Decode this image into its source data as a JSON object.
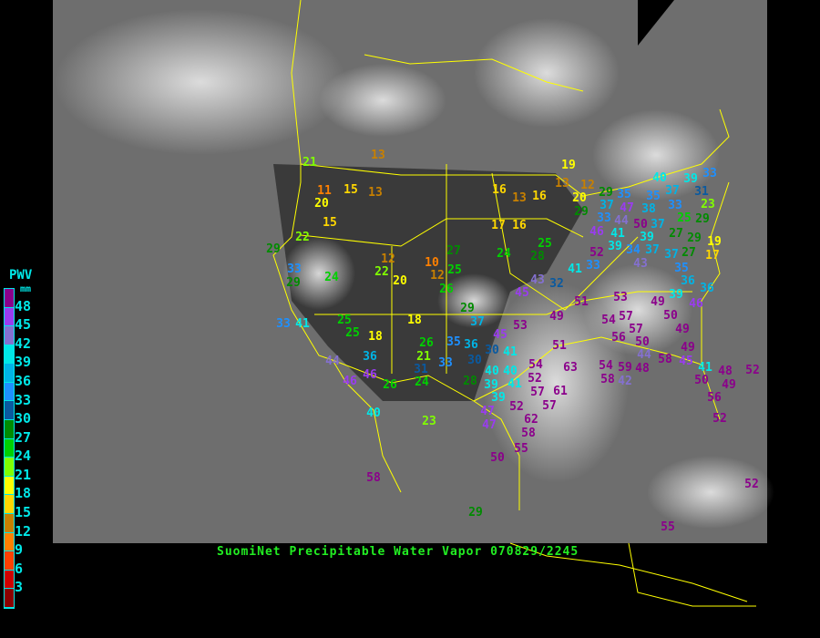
{
  "legend": {
    "title": "PWV",
    "unit": "mm",
    "ticks": [
      "48",
      "45",
      "42",
      "39",
      "36",
      "33",
      "30",
      "27",
      "24",
      "21",
      "18",
      "15",
      "12",
      "9",
      "6",
      "3"
    ],
    "colors_top_to_bottom": [
      "#8b008b",
      "#9a3cf0",
      "#8470d0",
      "#00e8e8",
      "#00b4e6",
      "#1e90ff",
      "#0a5aa0",
      "#008b00",
      "#00d000",
      "#80ff00",
      "#ffff00",
      "#ffd700",
      "#c88000",
      "#ff8000",
      "#ff4000",
      "#d00000",
      "#8b0000"
    ]
  },
  "caption": "SuomiNet Precipitable Water Vapor 070829/2245",
  "map": {
    "background": "satellite-infrared-grayscale",
    "border_color": "#ffff00"
  },
  "stations": [
    13,
    21,
    11,
    15,
    13,
    20,
    15,
    22,
    29,
    12,
    27,
    10,
    33,
    22,
    12,
    25,
    29,
    24,
    20,
    26,
    33,
    41,
    25,
    25,
    18,
    18,
    26,
    21,
    36,
    33,
    35,
    36,
    30,
    44,
    46,
    46,
    26,
    24,
    31,
    28,
    40,
    39,
    40,
    23,
    47,
    29,
    37,
    19,
    16,
    13,
    16,
    13,
    12,
    20,
    29,
    29,
    37,
    35,
    33,
    47,
    44,
    41,
    46,
    50,
    39,
    39,
    37,
    34,
    40,
    37,
    35,
    33,
    38,
    39,
    31,
    33,
    23,
    29,
    25,
    29,
    27,
    27,
    19,
    17,
    17,
    16,
    24,
    25,
    28,
    37,
    52,
    33,
    43,
    41,
    37,
    35,
    36,
    43,
    32,
    45,
    39,
    36,
    51,
    53,
    49,
    46,
    50,
    49,
    57,
    49,
    54,
    57,
    56,
    50,
    44,
    49,
    41,
    30,
    51,
    63,
    45,
    53,
    54,
    59,
    48,
    58,
    45,
    41,
    48,
    52,
    50,
    49,
    56,
    52,
    40,
    41,
    39,
    52,
    54,
    57,
    61,
    57,
    52,
    62,
    58,
    55,
    50,
    47,
    58,
    42,
    58,
    29,
    55,
    52
  ]
}
